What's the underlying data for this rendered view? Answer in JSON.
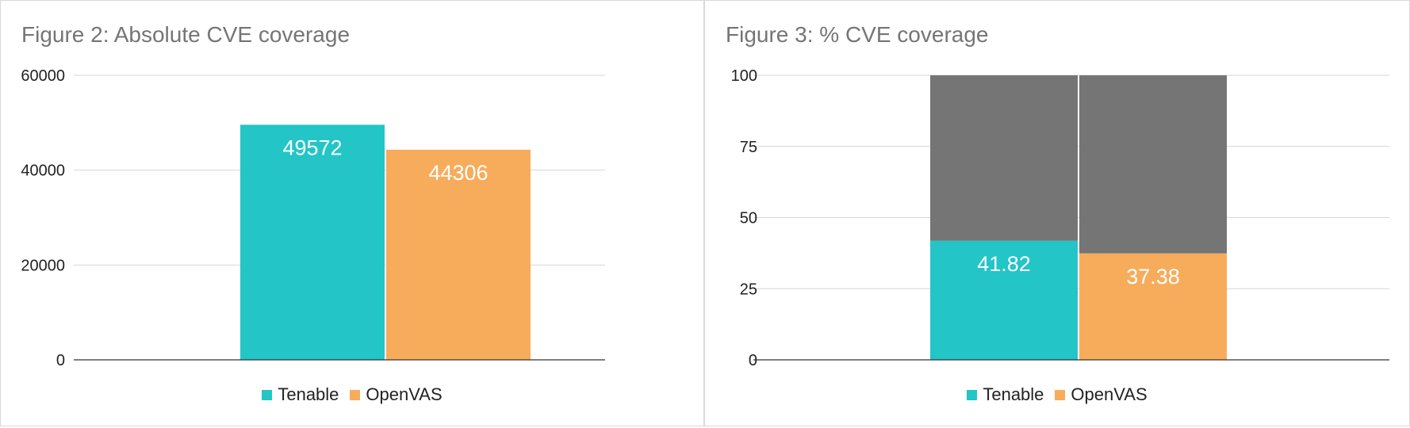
{
  "colors": {
    "tenable": "#23C5C7",
    "openvas": "#F7AC5B",
    "remainder": "#757575",
    "grid": "#d6d6d6",
    "axis": "#333333"
  },
  "chart_data": [
    {
      "type": "bar",
      "title": "Figure 2: Absolute CVE coverage",
      "xlabel": "",
      "ylabel": "",
      "ylim": [
        0,
        60000
      ],
      "yticks": [
        "0",
        "20000",
        "40000",
        "60000"
      ],
      "grid": true,
      "legend_position": "bottom",
      "series": [
        {
          "name": "Tenable",
          "values": [
            49572
          ],
          "labels": [
            "49572"
          ]
        },
        {
          "name": "OpenVAS",
          "values": [
            44306
          ],
          "labels": [
            "44306"
          ]
        }
      ]
    },
    {
      "type": "bar",
      "stacked": true,
      "title": "Figure 3: % CVE coverage",
      "xlabel": "",
      "ylabel": "",
      "ylim": [
        0,
        100
      ],
      "yticks": [
        "0",
        "25",
        "50",
        "75",
        "100"
      ],
      "grid": true,
      "legend_position": "bottom",
      "series": [
        {
          "name": "Tenable",
          "values": [
            41.82
          ],
          "remainder": [
            58.18
          ],
          "labels": [
            "41.82"
          ]
        },
        {
          "name": "OpenVAS",
          "values": [
            37.38
          ],
          "remainder": [
            62.62
          ],
          "labels": [
            "37.38"
          ]
        }
      ]
    }
  ]
}
